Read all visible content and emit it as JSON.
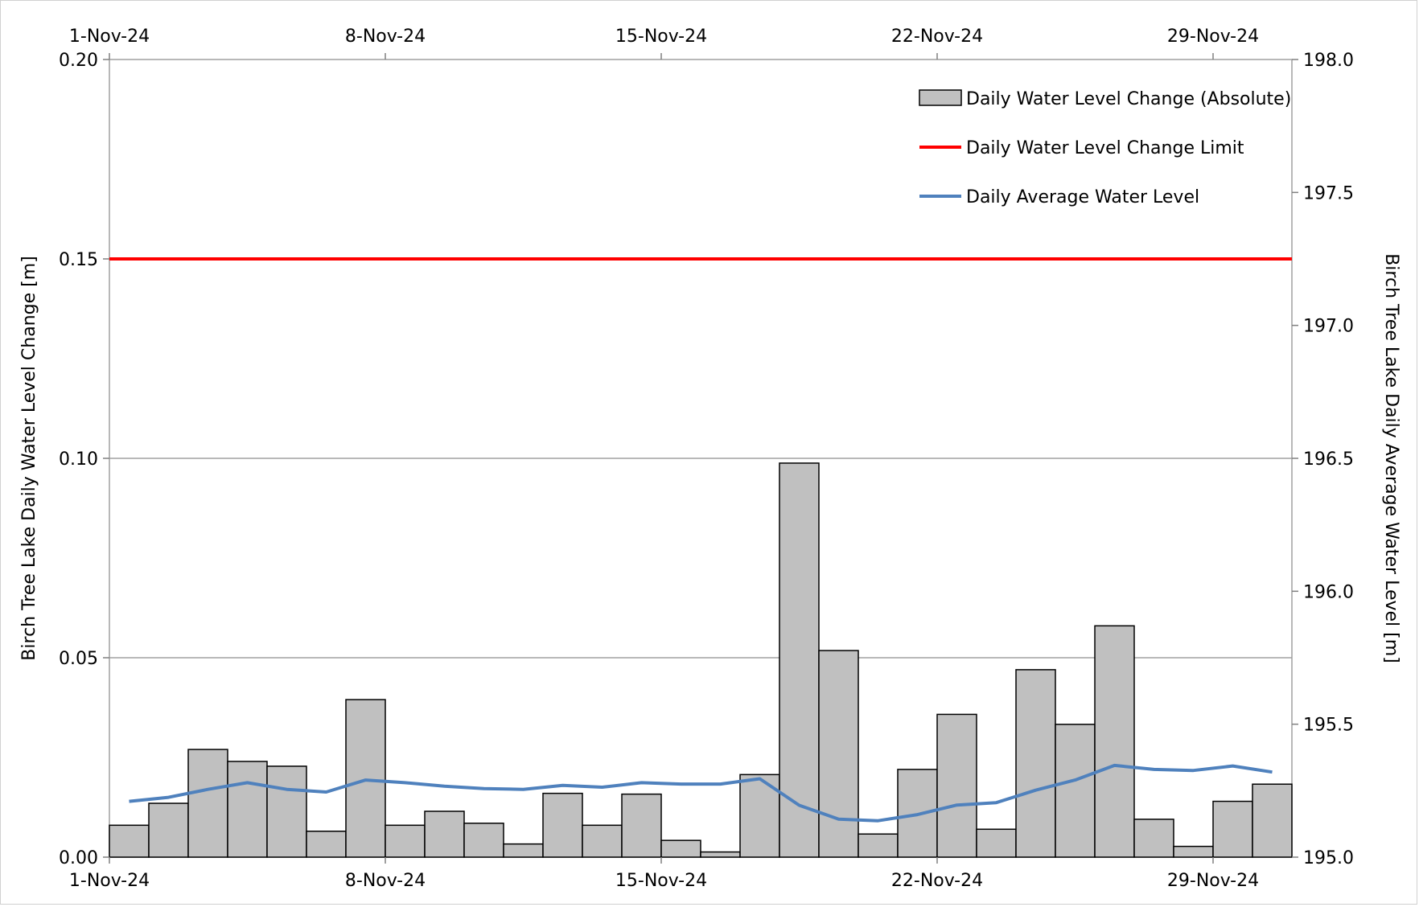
{
  "chart_data": {
    "type": "bar",
    "x_start_date": "2024-11-01",
    "x_tick_labels": [
      "1-Nov-24",
      "8-Nov-24",
      "15-Nov-24",
      "22-Nov-24",
      "29-Nov-24"
    ],
    "ylabel_left": "Birch Tree Lake Daily Water Level Change [m]",
    "ylabel_right": "Birch Tree Lake Daily Average Water Level [m]",
    "ylim_left": [
      0,
      0.2
    ],
    "ylim_right": [
      195.0,
      198.0
    ],
    "y_ticks_left": [
      "0.00",
      "0.05",
      "0.10",
      "0.15",
      "0.20"
    ],
    "y_ticks_right": [
      "195.0",
      "195.5",
      "196.0",
      "196.5",
      "197.0",
      "197.5",
      "198.0"
    ],
    "grid": true,
    "legend_position": "top-right",
    "series": [
      {
        "name": "Daily Water Level Change (Absolute)",
        "type": "bar",
        "axis": "left",
        "color": "#c0c0c0",
        "values": [
          0.008,
          0.0135,
          0.027,
          0.024,
          0.0228,
          0.0065,
          0.0395,
          0.008,
          0.0115,
          0.0085,
          0.0033,
          0.016,
          0.008,
          0.0158,
          0.0042,
          0.0013,
          0.0207,
          0.0988,
          0.0518,
          0.0058,
          0.022,
          0.0358,
          0.007,
          0.047,
          0.0333,
          0.058,
          0.0095,
          0.0027,
          0.014,
          0.0183
        ]
      },
      {
        "name": "Daily Water Level Change Limit",
        "type": "line",
        "axis": "left",
        "color": "#ff0000",
        "value": 0.15
      },
      {
        "name": "Daily Average Water Level",
        "type": "line",
        "axis": "right",
        "color": "#4f81bd",
        "values": [
          195.21,
          195.225,
          195.255,
          195.28,
          195.255,
          195.245,
          195.29,
          195.28,
          195.267,
          195.258,
          195.255,
          195.27,
          195.263,
          195.28,
          195.275,
          195.275,
          195.295,
          195.195,
          195.143,
          195.137,
          195.16,
          195.196,
          195.205,
          195.252,
          195.29,
          195.345,
          195.33,
          195.326,
          195.343,
          195.32
        ]
      }
    ]
  }
}
